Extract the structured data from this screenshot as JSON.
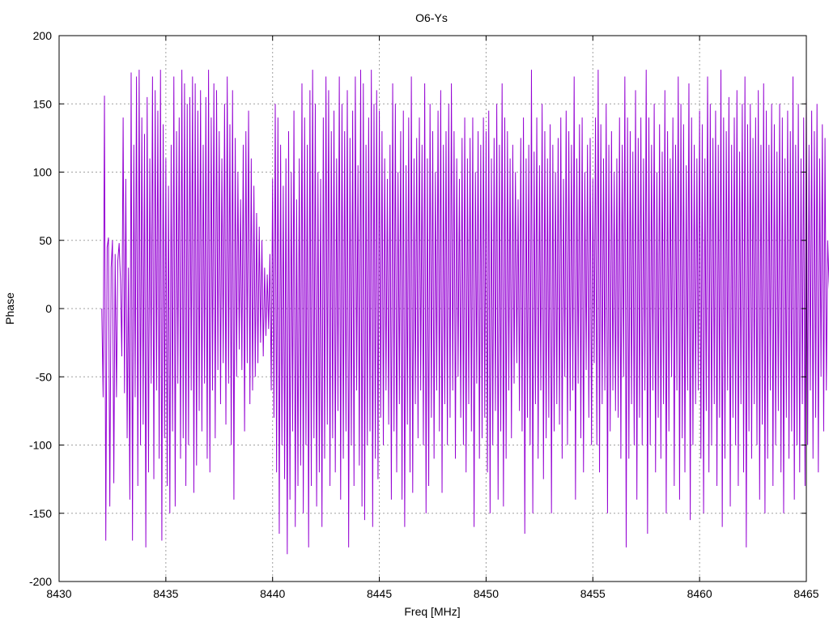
{
  "chart_data": {
    "type": "line",
    "title": "O6-Ys",
    "xlabel": "Freq [MHz]",
    "ylabel": "Phase",
    "xlim": [
      8430,
      8465
    ],
    "ylim": [
      -200,
      200
    ],
    "x_ticks": [
      "8430",
      "8435",
      "8440",
      "8445",
      "8450",
      "8455",
      "8460",
      "8465"
    ],
    "y_ticks": [
      "200",
      "150",
      "100",
      "50",
      "0",
      "-50",
      "-100",
      "-150",
      "-200"
    ],
    "grid": true,
    "legend": "none",
    "series": [
      {
        "color": "#9400d3",
        "x_start": 8432.0,
        "x_step": 0.0625,
        "values": [
          0,
          -65,
          156,
          -170,
          45,
          52,
          -145,
          30,
          50,
          -128,
          40,
          -65,
          35,
          48,
          20,
          -35,
          140,
          -62,
          95,
          -95,
          30,
          -140,
          173,
          -170,
          120,
          -65,
          170,
          -130,
          175,
          -100,
          140,
          -85,
          128,
          -175,
          155,
          -120,
          110,
          -55,
          170,
          -125,
          160,
          -60,
          145,
          -110,
          175,
          -170,
          135,
          -95,
          110,
          -130,
          90,
          -150,
          120,
          -90,
          170,
          -145,
          130,
          -55,
          140,
          -110,
          175,
          -95,
          165,
          -130,
          150,
          -100,
          155,
          -60,
          170,
          -135,
          165,
          -115,
          145,
          -75,
          160,
          -90,
          120,
          -55,
          155,
          -110,
          175,
          -120,
          140,
          -60,
          165,
          -95,
          160,
          -45,
          130,
          -70,
          110,
          -40,
          150,
          -85,
          170,
          -55,
          135,
          -100,
          160,
          -140,
          125,
          -50,
          100,
          -30,
          80,
          -45,
          120,
          -90,
          130,
          -40,
          145,
          -70,
          110,
          -60,
          90,
          -50,
          70,
          -40,
          60,
          -25,
          50,
          -35,
          30,
          -20,
          25,
          -15,
          40,
          -60,
          95,
          -80,
          150,
          -120,
          140,
          -165,
          120,
          -100,
          90,
          -125,
          110,
          -180,
          130,
          -140,
          100,
          -90,
          145,
          -160,
          80,
          -130,
          110,
          -115,
          165,
          -150,
          140,
          -100,
          120,
          -175,
          160,
          -130,
          175,
          -95,
          150,
          -145,
          100,
          -120,
          95,
          -160,
          140,
          -110,
          170,
          -85,
          160,
          -130,
          130,
          -95,
          145,
          -120,
          110,
          -75,
          170,
          -140,
          150,
          -110,
          130,
          -90,
          160,
          -175,
          125,
          -100,
          145,
          -130,
          170,
          -60,
          105,
          -115,
          175,
          -145,
          165,
          -155,
          120,
          -100,
          140,
          -90,
          175,
          -160,
          150,
          -110,
          160,
          -125,
          145,
          -80,
          130,
          -100,
          110,
          -60,
          95,
          -85,
          120,
          -140,
          165,
          -90,
          150,
          -120,
          100,
          -70,
          130,
          -140,
          145,
          -160,
          105,
          -85,
          140,
          -120,
          170,
          -135,
          110,
          -70,
          125,
          -95,
          140,
          -60,
          120,
          -100,
          165,
          -150,
          110,
          -130,
          150,
          -80,
          130,
          -110,
          100,
          -60,
          145,
          -90,
          160,
          -135,
          120,
          -70,
          130,
          -100,
          150,
          -80,
          165,
          -60,
          130,
          -110,
          110,
          -50,
          95,
          -80,
          125,
          -100,
          140,
          -120,
          110,
          -70,
          125,
          -90,
          140,
          -160,
          100,
          -55,
          130,
          -110,
          120,
          -95,
          140,
          -80,
          130,
          -120,
          145,
          -150,
          110,
          -100,
          125,
          -75,
          150,
          -140,
          120,
          -90,
          165,
          -145,
          140,
          -110,
          130,
          -60,
          110,
          -95,
          120,
          -55,
          100,
          -40,
          80,
          -75,
          125,
          -90,
          140,
          -165,
          110,
          -80,
          120,
          -100,
          175,
          -150,
          115,
          -70,
          140,
          -110,
          105,
          -60,
          150,
          -125,
          130,
          -95,
          110,
          -80,
          135,
          -150,
          120,
          -90,
          100,
          -70,
          125,
          -85,
          140,
          -110,
          95,
          -50,
          145,
          -100,
          130,
          -75,
          120,
          -60,
          170,
          -140,
          110,
          -55,
          135,
          -95,
          140,
          -120,
          100,
          -45,
          120,
          -80,
          125,
          -100,
          95,
          -40,
          140,
          -100,
          175,
          -120,
          135,
          -70,
          110,
          -60,
          150,
          -150,
          120,
          -90,
          130,
          -60,
          100,
          -75,
          110,
          -80,
          140,
          -110,
          120,
          -50,
          170,
          -175,
          140,
          -110,
          130,
          -70,
          115,
          -100,
          160,
          -140,
          125,
          -80,
          140,
          -100,
          110,
          -60,
          175,
          -165,
          140,
          -100,
          120,
          -60,
          150,
          -120,
          100,
          -80,
          135,
          -110,
          115,
          -70,
          160,
          -150,
          130,
          -90,
          110,
          -50,
          140,
          -130,
          120,
          -60,
          170,
          -140,
          150,
          -95,
          135,
          -120,
          105,
          -60,
          165,
          -155,
          140,
          -100,
          120,
          -70,
          110,
          -60,
          145,
          -110,
          135,
          -150,
          110,
          -75,
          170,
          -120,
          150,
          -100,
          125,
          -70,
          145,
          -130,
          120,
          -80,
          175,
          -160,
          140,
          -110,
          130,
          -60,
          155,
          -145,
          120,
          -80,
          140,
          -100,
          160,
          -130,
          115,
          -70,
          150,
          -120,
          170,
          -175,
          135,
          -90,
          150,
          -110,
          125,
          -70,
          140,
          -100,
          160,
          -140,
          120,
          -85,
          165,
          -150,
          145,
          -110,
          120,
          -60,
          150,
          -130,
          135,
          -100,
          115,
          -75,
          150,
          -120,
          140,
          -150,
          110,
          -80,
          145,
          -110,
          130,
          -90,
          170,
          -140,
          120,
          -100,
          150,
          -120,
          110,
          -70,
          140,
          -130,
          155,
          -100,
          120,
          -60,
          145,
          -110,
          130,
          -80,
          150,
          -120,
          110,
          -50,
          135,
          -90,
          125,
          -60,
          50,
          20,
          0
        ]
      }
    ]
  }
}
